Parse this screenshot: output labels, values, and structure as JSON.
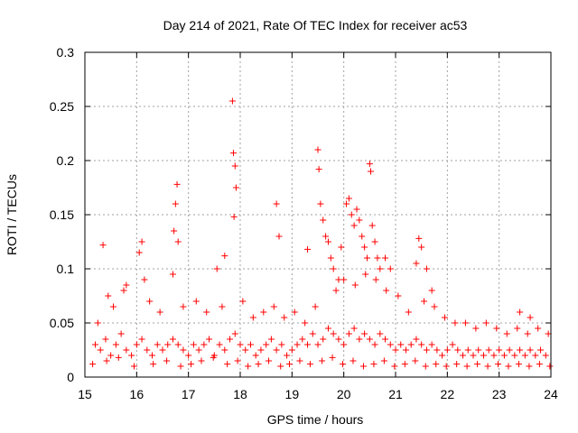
{
  "chart_data": {
    "type": "scatter",
    "title": "Day 214 of 2021, Rate Of TEC Index for receiver ac53",
    "xlabel": "GPS time / hours",
    "ylabel": "ROTI / TECUs",
    "xlim": [
      15,
      24
    ],
    "ylim": [
      0,
      0.3
    ],
    "xticks": [
      15,
      16,
      17,
      18,
      19,
      20,
      21,
      22,
      23,
      24
    ],
    "xtick_labels": [
      "15",
      "16",
      "17",
      "18",
      "19",
      "20",
      "21",
      "22",
      "23",
      "24"
    ],
    "yticks": [
      0,
      0.05,
      0.1,
      0.15,
      0.2,
      0.25,
      0.3
    ],
    "ytick_labels": [
      "0",
      "0.05",
      "0.1",
      "0.15",
      "0.2",
      "0.25",
      "0.3"
    ],
    "grid": true,
    "marker": "+",
    "series": [
      {
        "name": "ROTI",
        "color": "#ff0000",
        "x": [
          15.2,
          15.3,
          15.4,
          15.5,
          15.6,
          15.7,
          15.8,
          15.9,
          16.0,
          16.1,
          16.2,
          16.3,
          16.4,
          16.5,
          16.6,
          16.7,
          16.8,
          16.9,
          17.0,
          17.1,
          17.2,
          17.3,
          17.4,
          17.5,
          17.6,
          17.7,
          17.8,
          17.9,
          18.0,
          18.1,
          18.2,
          18.3,
          18.4,
          18.5,
          18.6,
          18.7,
          18.8,
          18.9,
          19.0,
          19.1,
          19.2,
          19.3,
          19.4,
          19.5,
          19.6,
          19.7,
          19.8,
          19.9,
          20.0,
          20.1,
          20.2,
          20.3,
          20.4,
          20.5,
          20.6,
          20.7,
          20.8,
          20.9,
          21.0,
          21.1,
          21.2,
          21.3,
          21.4,
          21.5,
          21.6,
          21.7,
          21.8,
          21.9,
          22.0,
          22.1,
          22.2,
          22.3,
          22.4,
          22.5,
          22.6,
          22.7,
          22.8,
          22.9,
          23.0,
          23.1,
          23.2,
          23.3,
          23.4,
          23.5,
          23.6,
          23.7,
          23.8,
          23.9,
          15.35,
          15.45,
          15.8,
          16.05,
          16.1,
          16.15,
          16.7,
          16.72,
          16.75,
          16.78,
          16.8,
          17.55,
          17.7,
          17.85,
          17.87,
          17.9,
          17.92,
          17.88,
          18.7,
          18.75,
          19.3,
          19.5,
          19.52,
          19.55,
          19.6,
          19.65,
          19.7,
          19.75,
          19.8,
          19.9,
          19.95,
          20.05,
          20.1,
          20.15,
          20.2,
          20.25,
          20.3,
          20.35,
          20.4,
          20.45,
          20.5,
          20.52,
          20.55,
          20.6,
          20.65,
          20.7,
          20.8,
          20.9,
          21.4,
          21.45,
          21.5,
          21.6,
          21.7,
          23.4,
          23.6,
          15.25,
          15.55,
          15.75,
          16.25,
          16.45,
          16.9,
          17.15,
          17.35,
          17.65,
          18.05,
          18.25,
          18.45,
          18.65,
          18.85,
          19.05,
          19.25,
          19.45,
          19.85,
          20.0,
          20.22,
          20.42,
          20.62,
          20.82,
          21.05,
          21.25,
          21.55,
          21.75,
          21.95,
          22.15,
          22.35,
          22.55,
          22.75,
          22.95,
          23.15,
          23.35,
          23.55,
          23.75,
          23.95,
          15.15,
          15.42,
          15.65,
          15.95,
          16.32,
          16.58,
          16.85,
          17.05,
          17.25,
          17.48,
          17.75,
          17.95,
          18.15,
          18.35,
          18.55,
          18.78,
          18.95,
          19.15,
          19.35,
          19.58,
          19.78,
          19.98,
          20.18,
          20.38,
          20.58,
          20.78,
          20.98,
          21.18,
          21.38,
          21.58,
          21.78,
          21.98,
          22.18,
          22.38,
          22.58,
          22.78,
          22.98,
          23.18,
          23.38,
          23.58,
          23.78,
          23.98
        ],
        "y": [
          0.03,
          0.025,
          0.035,
          0.02,
          0.03,
          0.04,
          0.025,
          0.02,
          0.03,
          0.035,
          0.025,
          0.02,
          0.03,
          0.025,
          0.03,
          0.035,
          0.03,
          0.025,
          0.02,
          0.03,
          0.025,
          0.03,
          0.035,
          0.02,
          0.03,
          0.025,
          0.035,
          0.04,
          0.03,
          0.025,
          0.03,
          0.02,
          0.025,
          0.03,
          0.035,
          0.025,
          0.03,
          0.02,
          0.025,
          0.03,
          0.035,
          0.03,
          0.04,
          0.03,
          0.035,
          0.045,
          0.04,
          0.035,
          0.03,
          0.04,
          0.045,
          0.035,
          0.04,
          0.035,
          0.03,
          0.04,
          0.035,
          0.03,
          0.025,
          0.03,
          0.025,
          0.03,
          0.035,
          0.03,
          0.025,
          0.03,
          0.025,
          0.02,
          0.025,
          0.03,
          0.025,
          0.02,
          0.025,
          0.02,
          0.025,
          0.02,
          0.025,
          0.02,
          0.025,
          0.02,
          0.025,
          0.02,
          0.025,
          0.02,
          0.025,
          0.02,
          0.025,
          0.02,
          0.122,
          0.075,
          0.085,
          0.115,
          0.125,
          0.09,
          0.095,
          0.135,
          0.16,
          0.178,
          0.125,
          0.1,
          0.112,
          0.255,
          0.207,
          0.195,
          0.175,
          0.148,
          0.16,
          0.13,
          0.118,
          0.21,
          0.192,
          0.16,
          0.145,
          0.13,
          0.125,
          0.11,
          0.1,
          0.09,
          0.12,
          0.16,
          0.165,
          0.15,
          0.14,
          0.155,
          0.145,
          0.13,
          0.12,
          0.11,
          0.197,
          0.19,
          0.14,
          0.125,
          0.11,
          0.1,
          0.11,
          0.1,
          0.105,
          0.128,
          0.12,
          0.1,
          0.08,
          0.06,
          0.055,
          0.05,
          0.065,
          0.08,
          0.07,
          0.06,
          0.065,
          0.07,
          0.06,
          0.065,
          0.07,
          0.055,
          0.06,
          0.065,
          0.055,
          0.06,
          0.05,
          0.065,
          0.08,
          0.09,
          0.085,
          0.095,
          0.09,
          0.08,
          0.075,
          0.06,
          0.07,
          0.065,
          0.055,
          0.05,
          0.05,
          0.045,
          0.05,
          0.045,
          0.04,
          0.045,
          0.04,
          0.045,
          0.04,
          0.012,
          0.015,
          0.018,
          0.01,
          0.012,
          0.015,
          0.01,
          0.012,
          0.015,
          0.018,
          0.012,
          0.015,
          0.01,
          0.012,
          0.015,
          0.01,
          0.012,
          0.015,
          0.012,
          0.015,
          0.018,
          0.012,
          0.015,
          0.01,
          0.012,
          0.015,
          0.01,
          0.012,
          0.015,
          0.01,
          0.012,
          0.01,
          0.012,
          0.01,
          0.012,
          0.01,
          0.012,
          0.01,
          0.012,
          0.01,
          0.012,
          0.01
        ]
      }
    ]
  }
}
